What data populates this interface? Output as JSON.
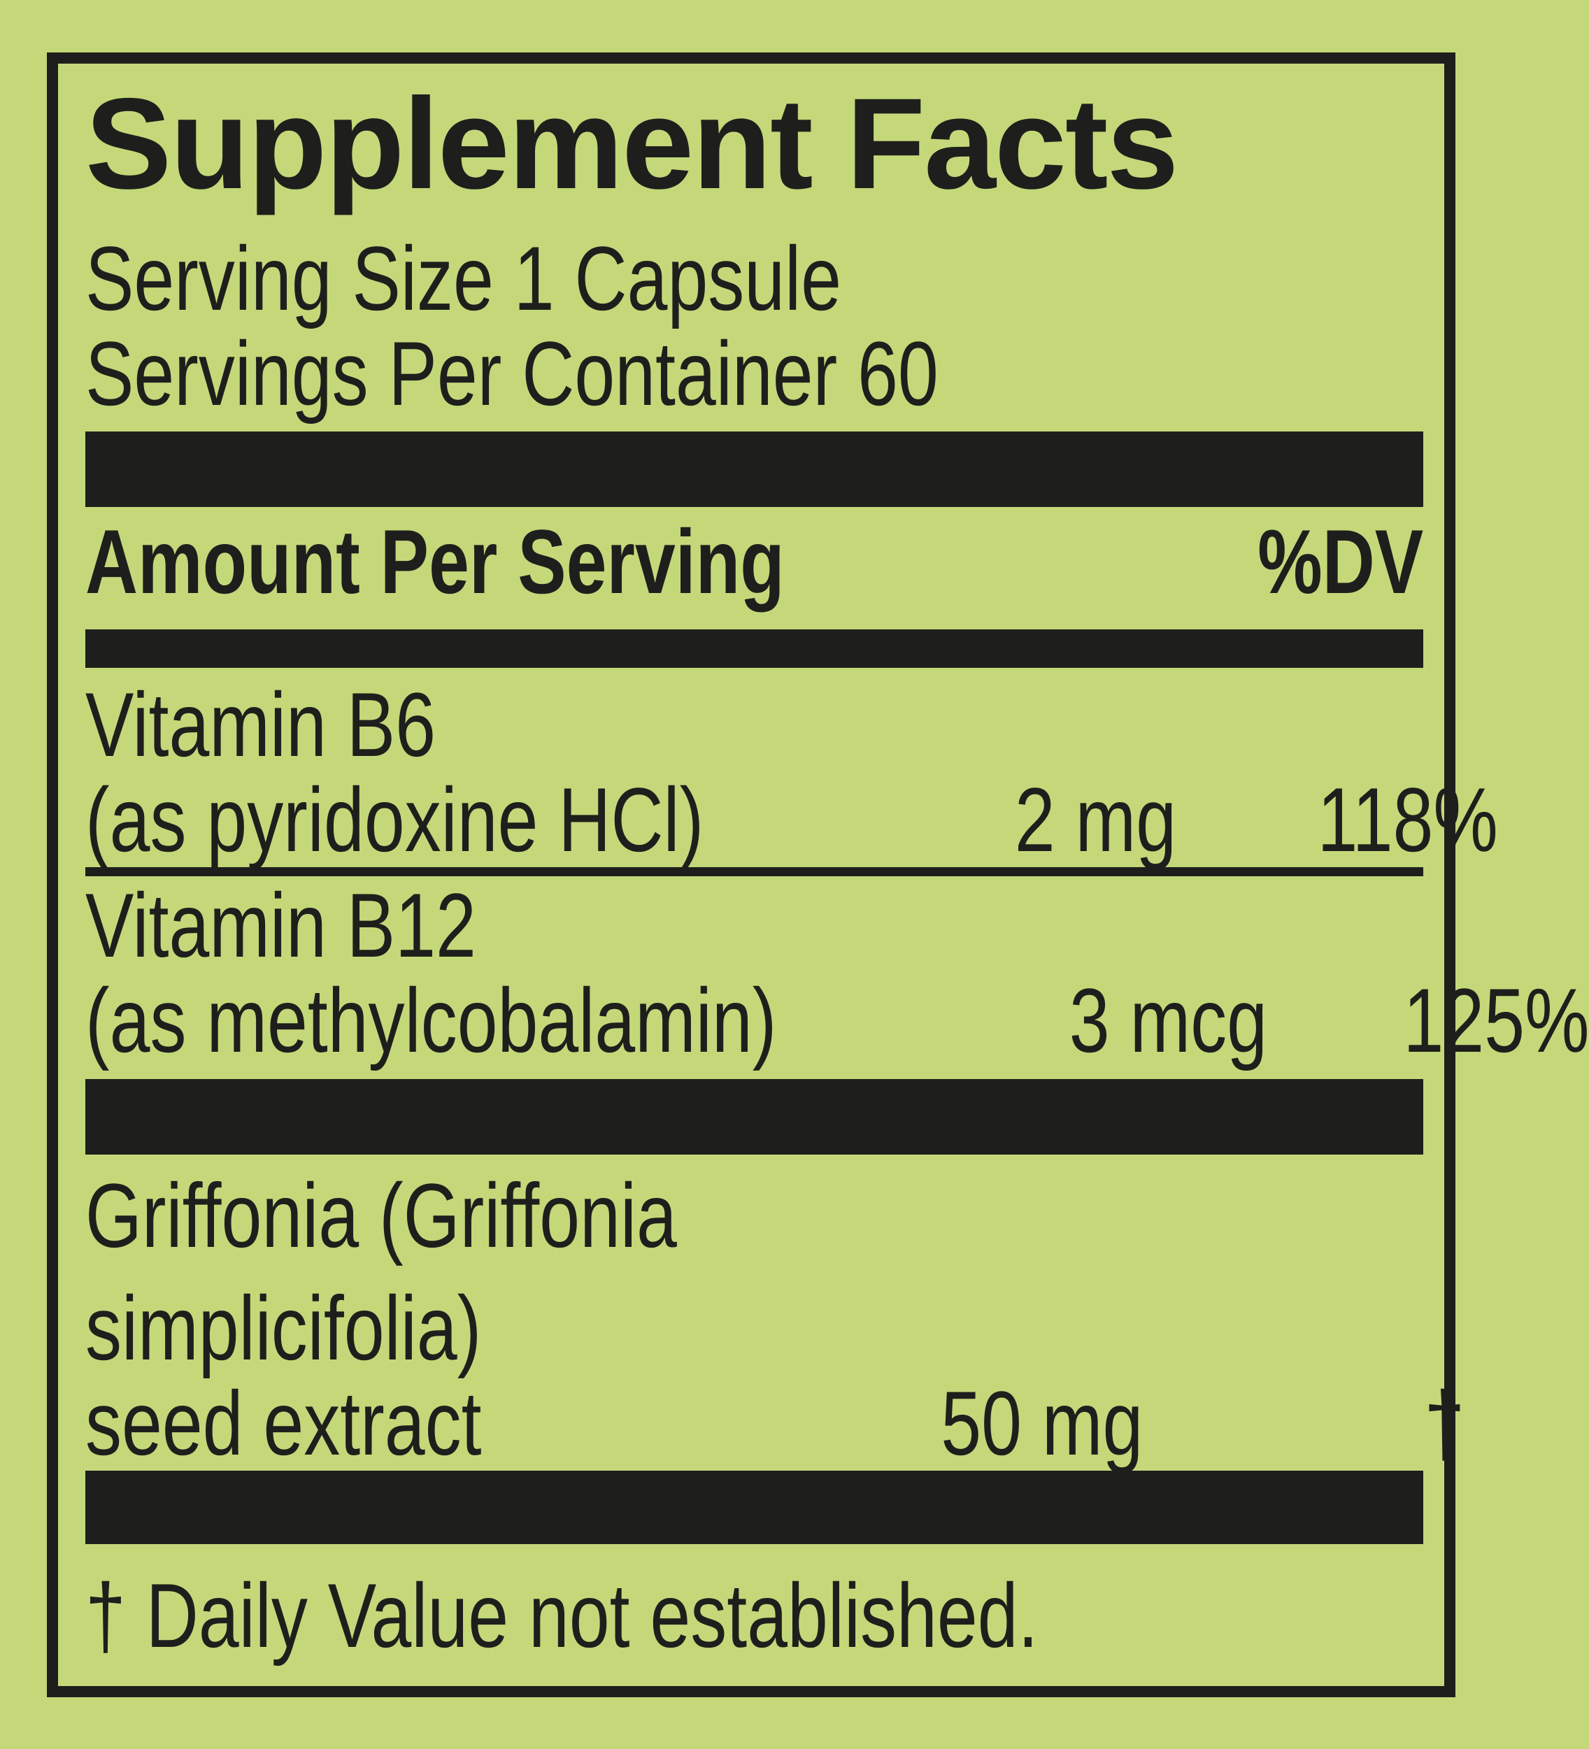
{
  "panel": {
    "title": "Supplement Facts",
    "serving_size": "Serving Size 1 Capsule",
    "servings_per_container": "Servings Per Container 60",
    "header": {
      "amount": "Amount Per Serving",
      "dv": "%DV"
    },
    "rows": [
      {
        "name_lines": [
          "Vitamin B6",
          "(as pyridoxine HCl)"
        ],
        "amount": "2 mg",
        "dv": "118%"
      },
      {
        "name_lines": [
          "Vitamin B12",
          "(as methylcobalamin)"
        ],
        "amount": "3 mcg",
        "dv": "125%"
      },
      {
        "name_lines": [
          "Griffonia (Griffonia",
          "simplicifolia)",
          "seed extract"
        ],
        "amount": "50 mg",
        "dv": "†"
      }
    ],
    "footnote": "† Daily Value not established.",
    "colors": {
      "background": "#c4d87a",
      "ink": "#1e1f1c"
    }
  }
}
